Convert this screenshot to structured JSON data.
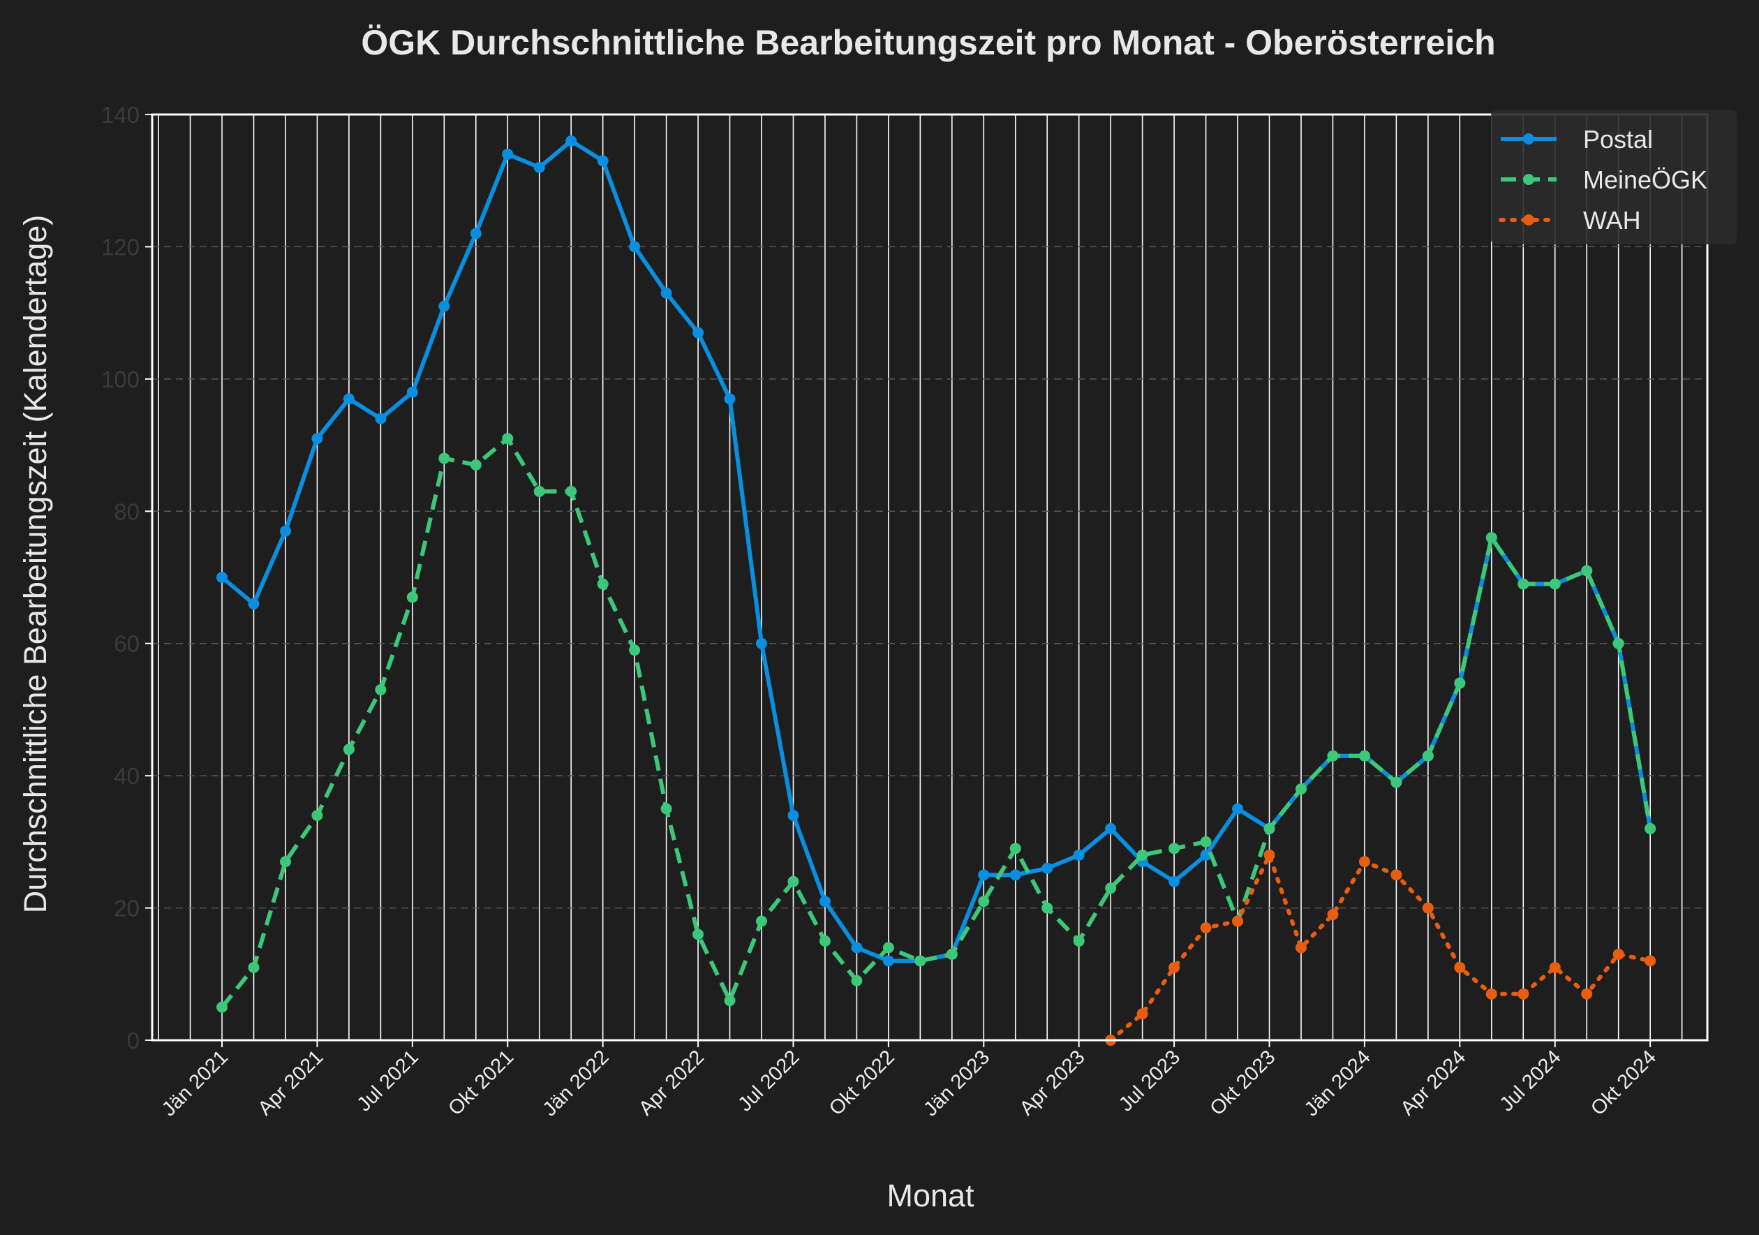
{
  "chart_data": {
    "type": "line",
    "title": "ÖGK Durchschnittliche Bearbeitungszeit pro Monat - Oberösterreich",
    "xlabel": "Monat",
    "ylabel": "Durchschnittliche Bearbeitungszeit (Kalendertage)",
    "ylim": [
      0,
      140
    ],
    "yticks": [
      0,
      20,
      40,
      60,
      80,
      100,
      120,
      140
    ],
    "x_range_months": [
      -2.2,
      46.8
    ],
    "x_tick_months": [
      0,
      3,
      6,
      9,
      12,
      15,
      18,
      21,
      24,
      27,
      30,
      33,
      36,
      39,
      42,
      45
    ],
    "x_tick_labels": [
      "Jän 2021",
      "Apr 2021",
      "Jul 2021",
      "Okt 2021",
      "Jän 2022",
      "Apr 2022",
      "Jul 2022",
      "Okt 2022",
      "Jän 2023",
      "Apr 2023",
      "Jul 2023",
      "Okt 2023",
      "Jän 2024",
      "Apr 2024",
      "Jul 2024",
      "Okt 2024"
    ],
    "grid": {
      "x": "every month (solid, white)",
      "y": "dashed"
    },
    "legend_position": "top-right",
    "series": [
      {
        "name": "Postal",
        "color": "#0a8ee0",
        "style": "solid",
        "start_month": 0,
        "values": [
          70,
          66,
          77,
          91,
          97,
          94,
          98,
          111,
          122,
          134,
          132,
          136,
          133,
          120,
          113,
          107,
          97,
          60,
          34,
          21,
          14,
          12,
          12,
          13,
          25,
          25,
          26,
          28,
          32,
          27,
          24,
          28,
          35,
          32,
          38,
          43,
          43,
          39,
          43,
          54,
          76,
          69,
          69,
          71,
          60,
          32
        ]
      },
      {
        "name": "MeineÖGK",
        "color": "#3cc878",
        "style": "dashed",
        "start_month": 0,
        "values": [
          5,
          11,
          27,
          34,
          44,
          53,
          67,
          88,
          87,
          91,
          83,
          83,
          69,
          59,
          35,
          16,
          6,
          18,
          24,
          15,
          9,
          14,
          12,
          13,
          21,
          29,
          20,
          15,
          23,
          28,
          29,
          30,
          18,
          32,
          38,
          43,
          43,
          39,
          43,
          54,
          76,
          69,
          69,
          71,
          60,
          32
        ]
      },
      {
        "name": "WAH",
        "color": "#e85d10",
        "style": "dotted",
        "start_month": 28,
        "values": [
          0,
          4,
          11,
          17,
          18,
          28,
          14,
          19,
          27,
          25,
          20,
          11,
          7,
          7,
          11,
          7,
          13,
          12
        ]
      }
    ]
  }
}
